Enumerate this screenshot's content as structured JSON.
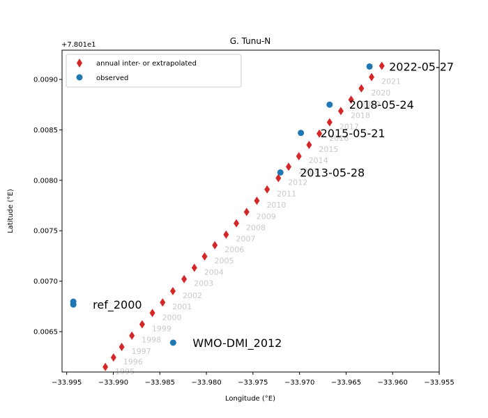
{
  "chart_data": {
    "type": "scatter",
    "title": "G. Tunu-N",
    "xlabel": "Longitude (°E)",
    "ylabel": "Latitude (°E)",
    "offset_label": "+7.801e1",
    "xlim": [
      -33.9955,
      -33.955
    ],
    "ylim": [
      0.0061,
      0.00929
    ],
    "x_ticks": [
      -33.995,
      -33.99,
      -33.985,
      -33.98,
      -33.975,
      -33.97,
      -33.965,
      -33.96,
      -33.955
    ],
    "x_tick_labels": [
      "−33.995",
      "−33.990",
      "−33.985",
      "−33.980",
      "−33.975",
      "−33.970",
      "−33.965",
      "−33.960",
      "−33.955"
    ],
    "y_ticks": [
      0.0065,
      0.007,
      0.0075,
      0.008,
      0.0085,
      0.009
    ],
    "y_tick_labels": [
      "0.0065",
      "0.0070",
      "0.0075",
      "0.0080",
      "0.0085",
      "0.0090"
    ],
    "legend": {
      "position": "upper-left",
      "entries": [
        {
          "label": "annual inter- or extrapolated",
          "marker": "diamond",
          "color": "#d62728"
        },
        {
          "label": "observed",
          "marker": "circle",
          "color": "#1f77b4"
        }
      ]
    },
    "series": [
      {
        "name": "annual inter- or extrapolated",
        "marker": "diamond",
        "color": "#d62728",
        "points": [
          {
            "x": -33.99085,
            "y": 0.00615,
            "label": "1995"
          },
          {
            "x": -33.98997,
            "y": 0.006244,
            "label": "1996"
          },
          {
            "x": -33.98909,
            "y": 0.006349,
            "label": "1997"
          },
          {
            "x": -33.988,
            "y": 0.006461,
            "label": "1998"
          },
          {
            "x": -33.9869,
            "y": 0.006573,
            "label": "1999"
          },
          {
            "x": -33.9858,
            "y": 0.006685,
            "label": "2000"
          },
          {
            "x": -33.9847,
            "y": 0.00679,
            "label": "2001"
          },
          {
            "x": -33.9836,
            "y": 0.006902,
            "label": "2002"
          },
          {
            "x": -33.98239,
            "y": 0.007021,
            "label": "2003"
          },
          {
            "x": -33.98129,
            "y": 0.007133,
            "label": "2004"
          },
          {
            "x": -33.98019,
            "y": 0.007245,
            "label": "2005"
          },
          {
            "x": -33.97909,
            "y": 0.007357,
            "label": "2006"
          },
          {
            "x": -33.97788,
            "y": 0.007462,
            "label": "2007"
          },
          {
            "x": -33.97678,
            "y": 0.007574,
            "label": "2008"
          },
          {
            "x": -33.97568,
            "y": 0.007686,
            "label": "2009"
          },
          {
            "x": -33.97458,
            "y": 0.007798,
            "label": "2010"
          },
          {
            "x": -33.97348,
            "y": 0.00791,
            "label": "2011"
          },
          {
            "x": -33.97227,
            "y": 0.008022,
            "label": "2012"
          },
          {
            "x": -33.97117,
            "y": 0.008134,
            "label": "2013"
          },
          {
            "x": -33.97007,
            "y": 0.008239,
            "label": "2014"
          },
          {
            "x": -33.96897,
            "y": 0.008351,
            "label": "2015"
          },
          {
            "x": -33.96787,
            "y": 0.008463,
            "label": "2016"
          },
          {
            "x": -33.96677,
            "y": 0.008575,
            "label": "2017"
          },
          {
            "x": -33.96556,
            "y": 0.008687,
            "label": "2018"
          },
          {
            "x": -33.96446,
            "y": 0.008799,
            "label": "2019"
          },
          {
            "x": -33.96336,
            "y": 0.008911,
            "label": "2020"
          },
          {
            "x": -33.96226,
            "y": 0.009023,
            "label": "2021"
          },
          {
            "x": -33.96116,
            "y": 0.009135,
            "label": ""
          }
        ]
      },
      {
        "name": "observed",
        "marker": "circle",
        "color": "#1f77b4",
        "points": [
          {
            "x": -33.99429,
            "y": 0.006797,
            "label": ""
          },
          {
            "x": -33.99429,
            "y": 0.006769,
            "label": "ref_2000"
          },
          {
            "x": -33.98357,
            "y": 0.006391,
            "label": "WMO-DMI_2012"
          },
          {
            "x": -33.97205,
            "y": 0.008078,
            "label": "2013-05-28"
          },
          {
            "x": -33.96985,
            "y": 0.00847,
            "label": "2015-05-21"
          },
          {
            "x": -33.96677,
            "y": 0.00875,
            "label": "2018-05-24"
          },
          {
            "x": -33.96248,
            "y": 0.009128,
            "label": "2022-05-27"
          }
        ]
      }
    ]
  }
}
